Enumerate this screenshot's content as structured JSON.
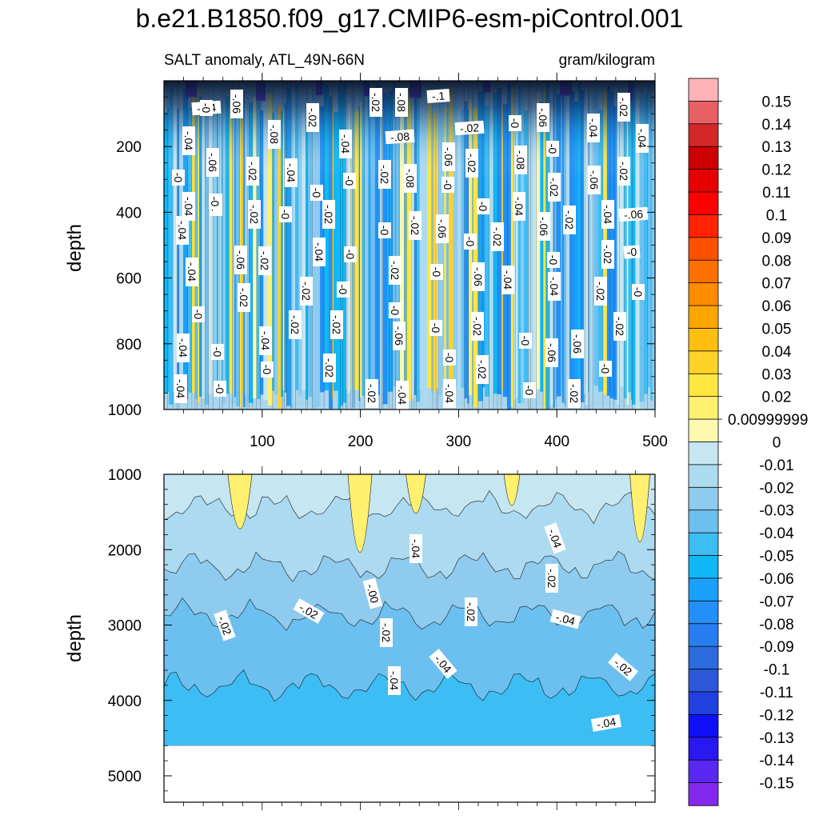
{
  "chart_data": {
    "title": "b.e21.B1850.f09_g17.CMIP6-esm-piControl.001",
    "left_subtitle": "SALT anomaly, ATL_49N-66N",
    "right_subtitle": "gram/kilogram",
    "type": "heatmap",
    "panels": [
      {
        "name": "upper",
        "ylabel": "depth",
        "ylim": [
          1000,
          0
        ],
        "xlim": [
          0,
          500
        ],
        "yticks": [
          "200",
          "400",
          "600",
          "800",
          "1000"
        ],
        "xticks": [
          "100",
          "200",
          "300",
          "400",
          "500"
        ],
        "contour_labels": [
          "-.04",
          "-.06",
          "-.02",
          "-.08",
          "-.1",
          "-.04",
          "-.06",
          "-.02",
          "-.08",
          "-.04",
          "-0",
          "-.06",
          "-.02",
          "-.08",
          "-0",
          "-.04",
          "-.1",
          "-.02",
          "-.04",
          "-0",
          "-.06",
          "-.02",
          "-.08",
          "-0",
          "-.04",
          "-.02",
          "-.04",
          "-.02",
          "-.06",
          "-.02",
          "-.08",
          "-0",
          "-.02",
          "-0",
          "-.04",
          "-0",
          "-.02",
          "-0",
          "-.02",
          "-0",
          "-.04",
          "-.06",
          "-.02",
          "-.04",
          "-.06",
          "-0",
          "-.02",
          "-.06",
          "-0",
          "-.02",
          "-.04",
          "-.06",
          "-.02",
          "-.04",
          "-0",
          "-.02",
          "-0",
          "-.06",
          "-.04",
          "-0",
          "-.02",
          "-0",
          "-.02",
          "-.02",
          "-0",
          "-0",
          "-.04",
          "-.02",
          "-0",
          "-0",
          "-.02",
          "-.02",
          "-.06",
          "-0",
          "-.02",
          "-0",
          "-.06",
          "-.02",
          "-.04",
          "-0",
          "-.04",
          "-.02",
          "-0",
          "-.02",
          "-.06",
          "-.02",
          "-.04",
          "-.04",
          "-0",
          "-.02",
          "-.04",
          "-0",
          "-0",
          "-0",
          "-0"
        ]
      },
      {
        "name": "lower",
        "ylabel": "depth",
        "ylim": [
          5350,
          1000
        ],
        "xlim": [
          0,
          500
        ],
        "yticks": [
          "1000",
          "2000",
          "3000",
          "4000",
          "5000"
        ],
        "missing_below": 4600,
        "contour_labels": [
          "-.02",
          "-.02",
          "-.04",
          "-.00",
          "-.02",
          "-.04",
          "-.04",
          "-.02",
          "-.04",
          "-.02",
          "-.04",
          "-.02",
          "-.04"
        ]
      }
    ],
    "colorbar": {
      "labels": [
        "0.15",
        "0.14",
        "0.13",
        "0.12",
        "0.11",
        "0.1",
        "0.09",
        "0.08",
        "0.07",
        "0.06",
        "0.05",
        "0.04",
        "0.03",
        "0.02",
        "0.00999999",
        "0",
        "-0.01",
        "-0.02",
        "-0.03",
        "-0.04",
        "-0.05",
        "-0.06",
        "-0.07",
        "-0.08",
        "-0.09",
        "-0.1",
        "-0.11",
        "-0.12",
        "-0.13",
        "-0.14",
        "-0.15"
      ],
      "colors": [
        "#ffb3b8",
        "#e66064",
        "#d42828",
        "#cc0000",
        "#e60000",
        "#ff0000",
        "#ff2200",
        "#ff5000",
        "#ff7000",
        "#ff8c00",
        "#ffa500",
        "#ffbe10",
        "#ffd22a",
        "#ffe640",
        "#fff070",
        "#fff8b0",
        "#c6e6f2",
        "#acdaf0",
        "#8ecbee",
        "#6cc0f0",
        "#3cbdf4",
        "#10b8f8",
        "#1aa0fa",
        "#2290f8",
        "#287ef0",
        "#2c6cdc",
        "#2c58d8",
        "#2040e0",
        "#1010f6",
        "#2a18f0",
        "#5a28f0",
        "#8428ee"
      ]
    }
  }
}
